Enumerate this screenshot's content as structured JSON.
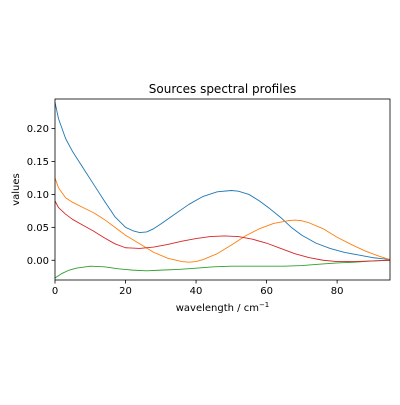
{
  "chart_data": {
    "type": "line",
    "title": "Sources spectral profiles",
    "xlabel": "wavelength / cm",
    "xlabel_superscript": "−1",
    "ylabel": "values",
    "xlim": [
      0,
      95
    ],
    "ylim": [
      -0.03,
      0.245
    ],
    "x_ticks": [
      0,
      20,
      40,
      60,
      80
    ],
    "x_tick_labels": [
      "0",
      "20",
      "40",
      "60",
      "80"
    ],
    "y_ticks": [
      0.0,
      0.05,
      0.1,
      0.15,
      0.2
    ],
    "y_tick_labels": [
      "0.00",
      "0.05",
      "0.10",
      "0.15",
      "0.20"
    ],
    "grid": false,
    "legend": "none",
    "series": [
      {
        "color": "#1f77b4",
        "x": [
          0,
          1,
          3,
          5,
          8,
          11,
          14,
          17,
          20,
          22,
          24,
          26,
          28,
          30,
          34,
          38,
          42,
          46,
          50,
          52,
          55,
          58,
          61,
          64,
          67,
          70,
          74,
          78,
          82,
          86,
          90,
          95
        ],
        "y": [
          0.24,
          0.215,
          0.185,
          0.165,
          0.14,
          0.115,
          0.09,
          0.066,
          0.05,
          0.045,
          0.042,
          0.043,
          0.048,
          0.055,
          0.07,
          0.085,
          0.097,
          0.104,
          0.106,
          0.105,
          0.1,
          0.09,
          0.078,
          0.065,
          0.05,
          0.038,
          0.026,
          0.018,
          0.012,
          0.008,
          0.004,
          0.001
        ]
      },
      {
        "color": "#ff7f0e",
        "x": [
          0,
          1,
          3,
          5,
          8,
          11,
          14,
          17,
          20,
          24,
          28,
          32,
          36,
          38,
          40,
          42,
          46,
          50,
          54,
          58,
          62,
          66,
          68,
          70,
          72,
          76,
          80,
          84,
          88,
          92,
          95
        ],
        "y": [
          0.125,
          0.11,
          0.095,
          0.088,
          0.08,
          0.072,
          0.062,
          0.05,
          0.038,
          0.025,
          0.012,
          0.003,
          -0.002,
          -0.003,
          -0.002,
          0.001,
          0.01,
          0.023,
          0.037,
          0.048,
          0.056,
          0.06,
          0.061,
          0.06,
          0.057,
          0.048,
          0.035,
          0.024,
          0.014,
          0.006,
          0.001
        ]
      },
      {
        "color": "#2ca02c",
        "x": [
          0,
          2,
          4,
          6,
          10,
          14,
          18,
          22,
          26,
          30,
          35,
          40,
          45,
          50,
          55,
          60,
          65,
          70,
          75,
          80,
          85,
          90,
          95
        ],
        "y": [
          -0.027,
          -0.02,
          -0.015,
          -0.012,
          -0.009,
          -0.01,
          -0.013,
          -0.015,
          -0.016,
          -0.015,
          -0.014,
          -0.012,
          -0.01,
          -0.009,
          -0.009,
          -0.009,
          -0.009,
          -0.008,
          -0.006,
          -0.004,
          -0.003,
          -0.001,
          0.0
        ]
      },
      {
        "color": "#d62728",
        "x": [
          0,
          1,
          3,
          5,
          8,
          11,
          14,
          17,
          20,
          24,
          28,
          32,
          36,
          40,
          44,
          48,
          52,
          56,
          60,
          64,
          68,
          72,
          76,
          80,
          85,
          90,
          95
        ],
        "y": [
          0.09,
          0.08,
          0.07,
          0.062,
          0.053,
          0.044,
          0.034,
          0.025,
          0.019,
          0.018,
          0.02,
          0.024,
          0.029,
          0.033,
          0.036,
          0.037,
          0.036,
          0.032,
          0.026,
          0.018,
          0.01,
          0.004,
          0.0,
          -0.002,
          -0.002,
          -0.001,
          0.0
        ]
      }
    ]
  }
}
